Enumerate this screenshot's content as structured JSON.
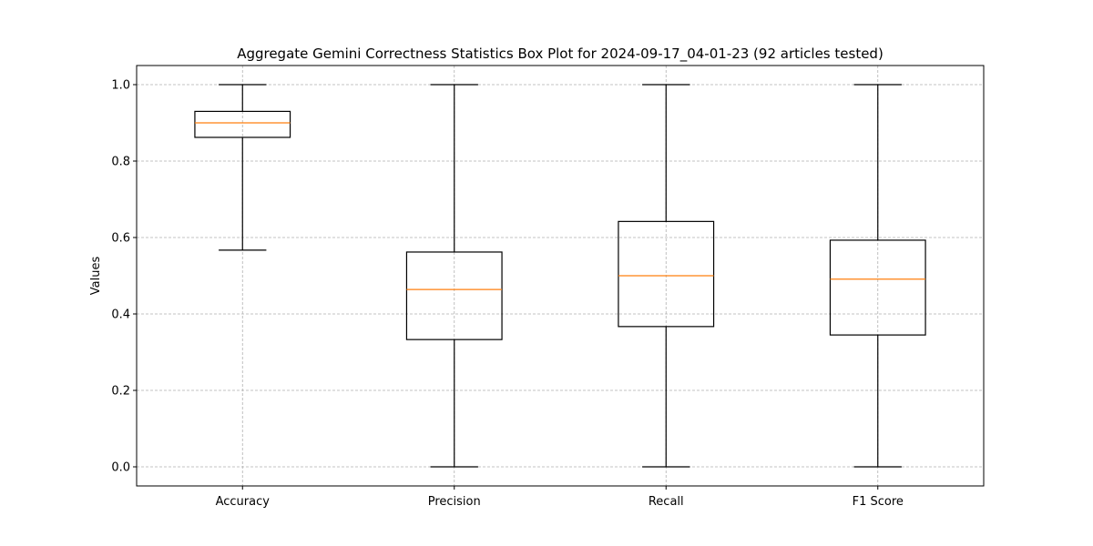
{
  "chart_data": {
    "type": "box",
    "title": "Aggregate Gemini Correctness Statistics Box Plot for 2024-09-17_04-01-23 (92 articles tested)",
    "xlabel": "",
    "ylabel": "Values",
    "ylim": [
      -0.05,
      1.05
    ],
    "yticks": [
      0.0,
      0.2,
      0.4,
      0.6,
      0.8,
      1.0
    ],
    "grid": true,
    "categories": [
      "Accuracy",
      "Precision",
      "Recall",
      "F1 Score"
    ],
    "boxes": [
      {
        "name": "Accuracy",
        "whisker_low": 0.567,
        "q1": 0.862,
        "median": 0.9,
        "q3": 0.93,
        "whisker_high": 1.0
      },
      {
        "name": "Precision",
        "whisker_low": 0.0,
        "q1": 0.333,
        "median": 0.464,
        "q3": 0.562,
        "whisker_high": 1.0
      },
      {
        "name": "Recall",
        "whisker_low": 0.0,
        "q1": 0.367,
        "median": 0.5,
        "q3": 0.642,
        "whisker_high": 1.0
      },
      {
        "name": "F1 Score",
        "whisker_low": 0.0,
        "q1": 0.345,
        "median": 0.491,
        "q3": 0.593,
        "whisker_high": 1.0
      }
    ],
    "colors": {
      "box": "#000000",
      "median": "#ff7f0e",
      "grid": "#b0b0b0"
    }
  }
}
